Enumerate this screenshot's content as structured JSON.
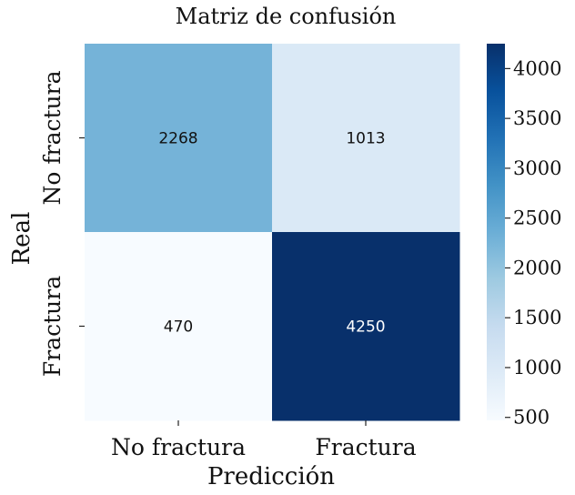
{
  "chart_data": {
    "type": "heatmap",
    "title": "Matriz de confusión",
    "xlabel": "Predicción",
    "ylabel": "Real",
    "x_categories": [
      "No fractura",
      "Fractura"
    ],
    "y_categories": [
      "No fractura",
      "Fractura"
    ],
    "matrix": [
      [
        2268,
        1013
      ],
      [
        470,
        4250
      ]
    ],
    "colorbar": {
      "min": 470,
      "max": 4250,
      "ticks": [
        500,
        1000,
        1500,
        2000,
        2500,
        3000,
        3500,
        4000
      ],
      "tick_labels": [
        "500",
        "1000",
        "1500",
        "2000",
        "2500",
        "3000",
        "3500",
        "4000"
      ],
      "colormap": "Blues"
    },
    "colors": {
      "low": "#f7fbff",
      "high": "#0b2d63"
    }
  }
}
